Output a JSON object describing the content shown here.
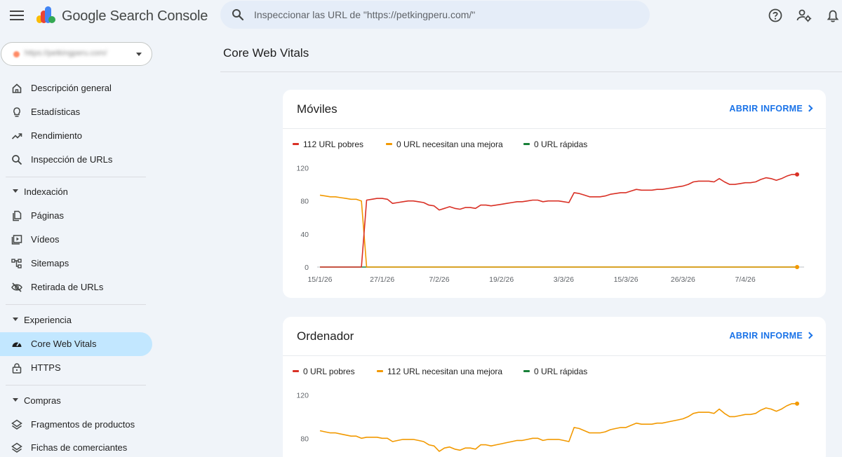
{
  "app": {
    "title": "Google Search Console",
    "search_placeholder": "Inspeccionar las URL de \"https://petkingperu.com/\""
  },
  "top_icons": [
    "help-icon",
    "manage-accounts-icon",
    "notifications-icon"
  ],
  "property": {
    "url": "https://petkingperu.com/"
  },
  "sidebar": {
    "items": [
      {
        "label": "Descripción general",
        "icon": "home-icon"
      },
      {
        "label": "Estadísticas",
        "icon": "lightbulb-icon"
      },
      {
        "label": "Rendimiento",
        "icon": "trending-up-icon"
      },
      {
        "label": "Inspección de URLs",
        "icon": "search-icon"
      }
    ],
    "sections": [
      {
        "label": "Indexación",
        "items": [
          {
            "label": "Páginas",
            "icon": "pages-icon"
          },
          {
            "label": "Vídeos",
            "icon": "video-icon"
          },
          {
            "label": "Sitemaps",
            "icon": "sitemap-icon"
          },
          {
            "label": "Retirada de URLs",
            "icon": "visibility-off-icon"
          }
        ]
      },
      {
        "label": "Experiencia",
        "items": [
          {
            "label": "Core Web Vitals",
            "icon": "speed-icon",
            "active": true
          },
          {
            "label": "HTTPS",
            "icon": "lock-icon"
          }
        ]
      },
      {
        "label": "Compras",
        "items": [
          {
            "label": "Fragmentos de productos",
            "icon": "layers-icon"
          },
          {
            "label": "Fichas de comerciantes",
            "icon": "layers-icon"
          }
        ]
      }
    ]
  },
  "main": {
    "title": "Core Web Vitals"
  },
  "cards": [
    {
      "title": "Móviles",
      "open_label": "ABRIR INFORME",
      "legend": [
        "112 URL pobres",
        "0 URL necesitan una mejora",
        "0 URL rápidas"
      ]
    },
    {
      "title": "Ordenador",
      "open_label": "ABRIR INFORME",
      "legend": [
        "0 URL pobres",
        "112 URL necesitan una mejora",
        "0 URL rápidas"
      ]
    }
  ],
  "colors": {
    "poor": "#d93025",
    "needs_improvement": "#f29900",
    "good": "#188038",
    "accent": "#1a73e8",
    "active_bg": "#c2e7ff"
  },
  "chart_data": [
    {
      "type": "line",
      "title": "Móviles",
      "ylim": [
        0,
        120
      ],
      "y_ticks": [
        0,
        40,
        80,
        120
      ],
      "x_tick_labels": [
        "15/1/26",
        "27/1/26",
        "7/2/26",
        "19/2/26",
        "3/3/26",
        "15/3/26",
        "26/3/26",
        "7/4/26"
      ],
      "x": [
        "15/1",
        "16/1",
        "17/1",
        "18/1",
        "19/1",
        "20/1",
        "21/1",
        "22/1",
        "23/1",
        "24/1",
        "25/1",
        "26/1",
        "27/1",
        "28/1",
        "29/1",
        "30/1",
        "31/1",
        "1/2",
        "2/2",
        "3/2",
        "4/2",
        "5/2",
        "6/2",
        "7/2",
        "8/2",
        "9/2",
        "10/2",
        "11/2",
        "12/2",
        "13/2",
        "14/2",
        "15/2",
        "16/2",
        "17/2",
        "18/2",
        "19/2",
        "20/2",
        "21/2",
        "22/2",
        "23/2",
        "24/2",
        "25/2",
        "26/2",
        "27/2",
        "28/2",
        "1/3",
        "2/3",
        "3/3",
        "4/3",
        "5/3",
        "6/3",
        "7/3",
        "8/3",
        "9/3",
        "10/3",
        "11/3",
        "12/3",
        "13/3",
        "14/3",
        "15/3",
        "16/3",
        "17/3",
        "18/3",
        "19/3",
        "20/3",
        "21/3",
        "22/3",
        "23/3",
        "24/3",
        "25/3",
        "26/3",
        "27/3",
        "28/3",
        "29/3",
        "30/3",
        "31/3",
        "1/4",
        "2/4",
        "3/4",
        "4/4",
        "5/4",
        "6/4",
        "7/4",
        "8/4",
        "9/4",
        "10/4",
        "11/4",
        "12/4",
        "13/4",
        "14/4",
        "15/4",
        "16/4",
        "17/4"
      ],
      "series": [
        {
          "name": "112 URL pobres",
          "color": "#d93025",
          "values": [
            0,
            0,
            0,
            0,
            0,
            0,
            0,
            0,
            0,
            81,
            82,
            83,
            83,
            82,
            77,
            78,
            79,
            80,
            80,
            79,
            78,
            75,
            74,
            69,
            71,
            73,
            71,
            70,
            72,
            72,
            71,
            75,
            75,
            74,
            75,
            76,
            77,
            78,
            79,
            79,
            80,
            81,
            81,
            79,
            80,
            80,
            80,
            79,
            78,
            90,
            89,
            87,
            85,
            85,
            85,
            86,
            88,
            89,
            90,
            90,
            92,
            94,
            93,
            93,
            93,
            94,
            94,
            95,
            96,
            97,
            98,
            100,
            103,
            104,
            104,
            104,
            103,
            107,
            103,
            100,
            100,
            101,
            102,
            102,
            103,
            106,
            108,
            107,
            105,
            107,
            110,
            112,
            112
          ]
        },
        {
          "name": "0 URL necesitan una mejora",
          "color": "#f29900",
          "values": [
            87,
            86,
            85,
            85,
            84,
            83,
            82,
            82,
            80,
            0,
            0,
            0,
            0,
            0,
            0,
            0,
            0,
            0,
            0,
            0,
            0,
            0,
            0,
            0,
            0,
            0,
            0,
            0,
            0,
            0,
            0,
            0,
            0,
            0,
            0,
            0,
            0,
            0,
            0,
            0,
            0,
            0,
            0,
            0,
            0,
            0,
            0,
            0,
            0,
            0,
            0,
            0,
            0,
            0,
            0,
            0,
            0,
            0,
            0,
            0,
            0,
            0,
            0,
            0,
            0,
            0,
            0,
            0,
            0,
            0,
            0,
            0,
            0,
            0,
            0,
            0,
            0,
            0,
            0,
            0,
            0,
            0,
            0,
            0,
            0,
            0,
            0,
            0,
            0,
            0,
            0,
            0,
            0
          ]
        },
        {
          "name": "0 URL rápidas",
          "color": "#188038",
          "values": [
            0,
            0,
            0,
            0,
            0,
            0,
            0,
            0,
            0,
            0,
            0,
            0,
            0,
            0,
            0,
            0,
            0,
            0,
            0,
            0,
            0,
            0,
            0,
            0,
            0,
            0,
            0,
            0,
            0,
            0,
            0,
            0,
            0,
            0,
            0,
            0,
            0,
            0,
            0,
            0,
            0,
            0,
            0,
            0,
            0,
            0,
            0,
            0,
            0,
            0,
            0,
            0,
            0,
            0,
            0,
            0,
            0,
            0,
            0,
            0,
            0,
            0,
            0,
            0,
            0,
            0,
            0,
            0,
            0,
            0,
            0,
            0,
            0,
            0,
            0,
            0,
            0,
            0,
            0,
            0,
            0,
            0,
            0,
            0,
            0,
            0,
            0,
            0,
            0,
            0,
            0,
            0,
            0
          ]
        }
      ]
    },
    {
      "type": "line",
      "title": "Ordenador",
      "ylim": [
        0,
        120
      ],
      "y_ticks": [
        80,
        120
      ],
      "series": [
        {
          "name": "112 URL necesitan una mejora",
          "color": "#f29900",
          "values": [
            87,
            86,
            85,
            85,
            84,
            83,
            82,
            82,
            80,
            81,
            81,
            81,
            80,
            80,
            77,
            78,
            79,
            79,
            79,
            78,
            77,
            74,
            73,
            68,
            71,
            72,
            70,
            69,
            71,
            71,
            70,
            74,
            74,
            73,
            74,
            75,
            76,
            77,
            78,
            78,
            79,
            80,
            80,
            78,
            79,
            79,
            79,
            78,
            77,
            90,
            89,
            87,
            85,
            85,
            85,
            86,
            88,
            89,
            90,
            90,
            92,
            94,
            93,
            93,
            93,
            94,
            94,
            95,
            96,
            97,
            98,
            100,
            103,
            104,
            104,
            104,
            103,
            107,
            103,
            100,
            100,
            101,
            102,
            102,
            103,
            106,
            108,
            107,
            105,
            107,
            110,
            112,
            112
          ]
        }
      ]
    }
  ]
}
